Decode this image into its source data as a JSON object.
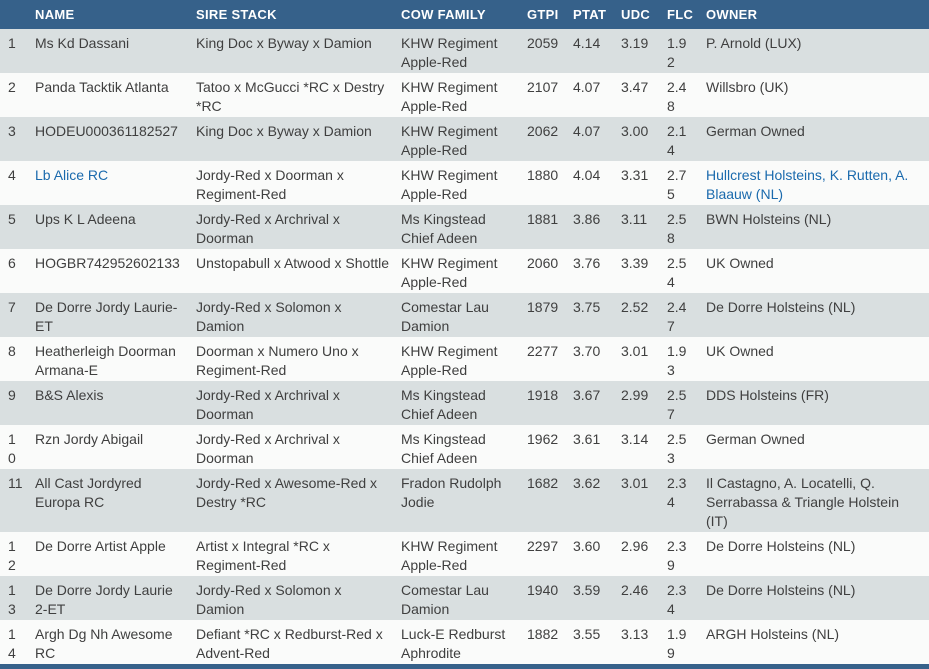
{
  "colors": {
    "header_bg": "#36618a",
    "row_odd": "#d9dfe0",
    "row_even": "#fafbfa",
    "text": "#3f3f3f",
    "link": "#1a6aad",
    "header_text": "#ffffff"
  },
  "table": {
    "headers": {
      "rank": "",
      "name": "NAME",
      "sire_stack": "SIRE STACK",
      "cow_family": "COW FAMILY",
      "gtpi": "GTPI",
      "ptat": "PTAT",
      "udc": "UDC",
      "flc": "FLC",
      "owner": "OWNER"
    },
    "rows": [
      {
        "rank": "1",
        "name": "Ms Kd Dassani",
        "name_is_link": false,
        "sire_stack": "King Doc x Byway x Damion",
        "cow_family": "KHW Regiment Apple-Red",
        "gtpi": "2059",
        "ptat": "4.14",
        "udc": "3.19",
        "flc": "1.92",
        "owner": "P. Arnold (LUX)",
        "owner_is_link": false
      },
      {
        "rank": "2",
        "name": "Panda Tacktik Atlanta",
        "name_is_link": false,
        "sire_stack": "Tatoo x McGucci *RC x Destry *RC",
        "cow_family": "KHW Regiment Apple-Red",
        "gtpi": "2107",
        "ptat": "4.07",
        "udc": "3.47",
        "flc": "2.48",
        "owner": "Willsbro (UK)",
        "owner_is_link": false
      },
      {
        "rank": "3",
        "name": "HODEU000361182527",
        "name_is_link": false,
        "sire_stack": "King Doc x Byway x Damion",
        "cow_family": "KHW Regiment Apple-Red",
        "gtpi": "2062",
        "ptat": "4.07",
        "udc": "3.00",
        "flc": "2.14",
        "owner": "German Owned",
        "owner_is_link": false
      },
      {
        "rank": "4",
        "name": "Lb Alice RC",
        "name_is_link": true,
        "sire_stack": "Jordy-Red x Doorman x Regiment-Red",
        "cow_family": "KHW Regiment Apple-Red",
        "gtpi": "1880",
        "ptat": "4.04",
        "udc": "3.31",
        "flc": "2.75",
        "owner": "Hullcrest Holsteins, K. Rutten, A. Blaauw (NL)",
        "owner_is_link": true
      },
      {
        "rank": "5",
        "name": "Ups K L Adeena",
        "name_is_link": false,
        "sire_stack": "Jordy-Red x Archrival x Doorman",
        "cow_family": "Ms Kingstead Chief Adeen",
        "gtpi": "1881",
        "ptat": "3.86",
        "udc": "3.11",
        "flc": "2.58",
        "owner": "BWN Holsteins (NL)",
        "owner_is_link": false
      },
      {
        "rank": "6",
        "name": "HOGBR742952602133",
        "name_is_link": false,
        "sire_stack": "Unstopabull x Atwood x Shottle",
        "cow_family": "KHW Regiment Apple-Red",
        "gtpi": "2060",
        "ptat": "3.76",
        "udc": "3.39",
        "flc": "2.54",
        "owner": "UK Owned",
        "owner_is_link": false
      },
      {
        "rank": "7",
        "name": "De Dorre Jordy Laurie-ET",
        "name_is_link": false,
        "sire_stack": "Jordy-Red x Solomon x Damion",
        "cow_family": "Comestar Lau Damion",
        "gtpi": "1879",
        "ptat": "3.75",
        "udc": "2.52",
        "flc": "2.47",
        "owner": "De Dorre Holsteins (NL)",
        "owner_is_link": false
      },
      {
        "rank": "8",
        "name": "Heatherleigh Doorman Armana-E",
        "name_is_link": false,
        "sire_stack": "Doorman x Numero Uno x Regiment-Red",
        "cow_family": "KHW Regiment Apple-Red",
        "gtpi": "2277",
        "ptat": "3.70",
        "udc": "3.01",
        "flc": "1.93",
        "owner": "UK Owned",
        "owner_is_link": false
      },
      {
        "rank": "9",
        "name": "B&S Alexis",
        "name_is_link": false,
        "sire_stack": "Jordy-Red x Archrival x Doorman",
        "cow_family": "Ms Kingstead Chief Adeen",
        "gtpi": "1918",
        "ptat": "3.67",
        "udc": "2.99",
        "flc": "2.57",
        "owner": "DDS Holsteins (FR)",
        "owner_is_link": false
      },
      {
        "rank": "10",
        "name": "Rzn Jordy Abigail",
        "name_is_link": false,
        "sire_stack": "Jordy-Red x Archrival x Doorman",
        "cow_family": "Ms Kingstead Chief Adeen",
        "gtpi": "1962",
        "ptat": "3.61",
        "udc": "3.14",
        "flc": "2.53",
        "owner": "German Owned",
        "owner_is_link": false
      },
      {
        "rank": "11",
        "name": "All Cast Jordyred Europa RC",
        "name_is_link": false,
        "sire_stack": "Jordy-Red x Awesome-Red x Destry *RC",
        "cow_family": "Fradon Rudolph Jodie",
        "gtpi": "1682",
        "ptat": "3.62",
        "udc": "3.01",
        "flc": "2.34",
        "owner": "Il Castagno, A. Locatelli, Q. Serrabassa & Triangle Holstein (IT)",
        "owner_is_link": false
      },
      {
        "rank": "12",
        "name": "De Dorre Artist Apple",
        "name_is_link": false,
        "sire_stack": "Artist x Integral *RC x Regiment-Red",
        "cow_family": "KHW Regiment Apple-Red",
        "gtpi": "2297",
        "ptat": "3.60",
        "udc": "2.96",
        "flc": "2.39",
        "owner": "De Dorre Holsteins (NL)",
        "owner_is_link": false
      },
      {
        "rank": "13",
        "name": "De Dorre Jordy Laurie 2-ET",
        "name_is_link": false,
        "sire_stack": "Jordy-Red x Solomon x Damion",
        "cow_family": "Comestar Lau Damion",
        "gtpi": "1940",
        "ptat": "3.59",
        "udc": "2.46",
        "flc": "2.34",
        "owner": "De Dorre Holsteins (NL)",
        "owner_is_link": false
      },
      {
        "rank": "14",
        "name": "Argh Dg Nh Awesome RC",
        "name_is_link": false,
        "sire_stack": "Defiant *RC x Redburst-Red x Advent-Red",
        "cow_family": "Luck-E Redburst Aphrodite",
        "gtpi": "1882",
        "ptat": "3.55",
        "udc": "3.13",
        "flc": "1.99",
        "owner": "ARGH Holsteins (NL)",
        "owner_is_link": false
      }
    ]
  }
}
